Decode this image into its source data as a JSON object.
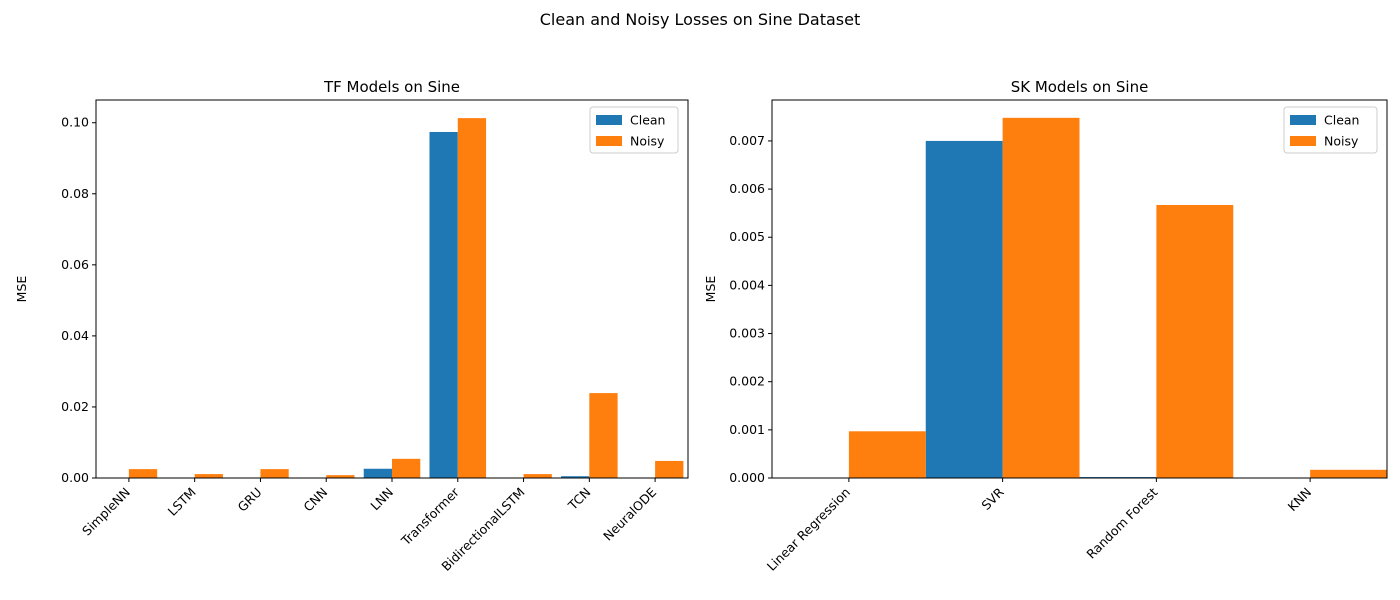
{
  "suptitle": "Clean and Noisy Losses on Sine Dataset",
  "colors": {
    "clean": "#1f77b4",
    "noisy": "#ff7f0e"
  },
  "chart_data": [
    {
      "type": "bar",
      "title": "TF Models on Sine",
      "xlabel": "",
      "ylabel": "MSE",
      "categories": [
        "SimpleNN",
        "LSTM",
        "GRU",
        "CNN",
        "LNN",
        "Transformer",
        "BidirectionalLSTM",
        "TCN",
        "NeuralODE"
      ],
      "series": [
        {
          "name": "Clean",
          "values": [
            2e-05,
            1e-05,
            2e-05,
            1e-05,
            0.0026,
            0.0974,
            1e-05,
            0.0005,
            2e-05
          ]
        },
        {
          "name": "Noisy",
          "values": [
            0.0025,
            0.0011,
            0.0025,
            0.0008,
            0.0054,
            0.1013,
            0.0011,
            0.0239,
            0.0048
          ]
        }
      ],
      "ylim": [
        0,
        0.1064
      ],
      "yticks": [
        0.0,
        0.02,
        0.04,
        0.06,
        0.08,
        0.1
      ],
      "ytick_labels": [
        "0.00",
        "0.02",
        "0.04",
        "0.06",
        "0.08",
        "0.10"
      ],
      "legend": "top-right",
      "grid": false
    },
    {
      "type": "bar",
      "title": "SK Models on Sine",
      "xlabel": "",
      "ylabel": "MSE",
      "categories": [
        "Linear Regression",
        "SVR",
        "Random Forest",
        "KNN"
      ],
      "series": [
        {
          "name": "Clean",
          "values": [
            0.0,
            0.007,
            2e-05,
            0.0
          ]
        },
        {
          "name": "Noisy",
          "values": [
            0.00097,
            0.00748,
            0.00567,
            0.00017
          ]
        }
      ],
      "ylim": [
        0,
        0.00785
      ],
      "yticks": [
        0.0,
        0.001,
        0.002,
        0.003,
        0.004,
        0.005,
        0.006,
        0.007
      ],
      "ytick_labels": [
        "0.000",
        "0.001",
        "0.002",
        "0.003",
        "0.004",
        "0.005",
        "0.006",
        "0.007"
      ],
      "legend": "top-right",
      "grid": false
    }
  ]
}
